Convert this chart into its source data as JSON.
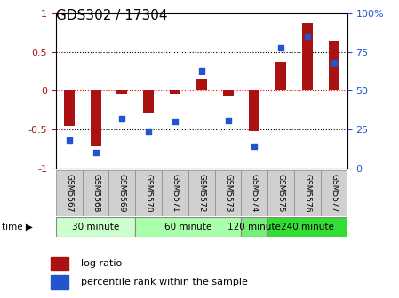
{
  "title": "GDS302 / 17304",
  "samples": [
    "GSM5567",
    "GSM5568",
    "GSM5569",
    "GSM5570",
    "GSM5571",
    "GSM5572",
    "GSM5573",
    "GSM5574",
    "GSM5575",
    "GSM5576",
    "GSM5577"
  ],
  "log_ratio": [
    -0.45,
    -0.72,
    -0.04,
    -0.28,
    -0.04,
    0.15,
    -0.06,
    -0.52,
    0.37,
    0.87,
    0.65
  ],
  "percentile": [
    18,
    10,
    32,
    24,
    30,
    63,
    31,
    14,
    78,
    85,
    68
  ],
  "bar_color": "#aa1111",
  "dot_color": "#2255cc",
  "groups": [
    {
      "label": "30 minute",
      "start": 0,
      "end": 3,
      "color": "#ccffcc"
    },
    {
      "label": "60 minute",
      "start": 3,
      "end": 7,
      "color": "#aaffaa"
    },
    {
      "label": "120 minute",
      "start": 7,
      "end": 8,
      "color": "#77ee77"
    },
    {
      "label": "240 minute",
      "start": 8,
      "end": 11,
      "color": "#33dd33"
    }
  ],
  "ylim_left": [
    -1,
    1
  ],
  "ylim_right": [
    0,
    100
  ],
  "yticks_left": [
    -1,
    -0.5,
    0,
    0.5,
    1
  ],
  "ytick_labels_left": [
    "-1",
    "-0.5",
    "0",
    "0.5",
    "1"
  ],
  "yticks_right": [
    0,
    25,
    50,
    75,
    100
  ],
  "ytick_labels_right": [
    "0",
    "25",
    "50",
    "75",
    "100%"
  ],
  "hlines": [
    -0.5,
    0,
    0.5
  ],
  "hline_colors": [
    "black",
    "red",
    "black"
  ],
  "hline_styles": [
    "dotted",
    "dotted",
    "dotted"
  ],
  "bar_width": 0.4,
  "dot_size": 22
}
